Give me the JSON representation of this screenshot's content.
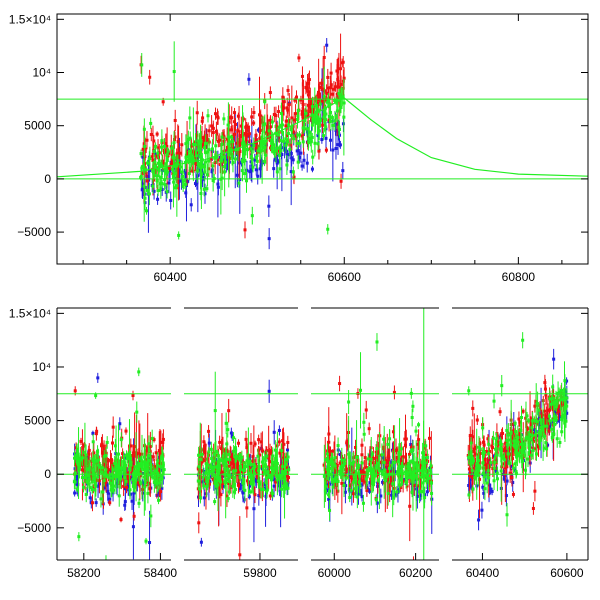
{
  "figure": {
    "background": "#ffffff",
    "series_colors": {
      "blue": "#1f1fdd",
      "red": "#ee1111",
      "green": "#22ee22",
      "model": "#22ee22"
    }
  },
  "chart_data": [
    {
      "type": "scatter",
      "title": "",
      "xlabel": "",
      "ylabel": "",
      "xlim": [
        60270,
        60880
      ],
      "ylim": [
        -8000,
        15500
      ],
      "grid": false,
      "legend": "none",
      "x_ticks": [
        {
          "value": 60400,
          "label": "60400"
        },
        {
          "value": 60600,
          "label": "60600"
        },
        {
          "value": 60800,
          "label": "60800"
        }
      ],
      "y_ticks": [
        {
          "value": 15000,
          "label": "1.5×10⁴"
        },
        {
          "value": 10000,
          "label": "10⁴"
        },
        {
          "value": 5000,
          "label": "5000"
        },
        {
          "value": 0,
          "label": "0"
        },
        {
          "value": -5000,
          "label": "−5000"
        }
      ],
      "horizontal_lines": [
        {
          "y": 7500,
          "color": "#22ee22"
        },
        {
          "y": 0,
          "color": "#22ee22"
        }
      ],
      "model_curve": {
        "color": "#22ee22",
        "x": [
          60270,
          60365,
          60440,
          60500,
          60550,
          60600,
          60630,
          60660,
          60700,
          60750,
          60800,
          60880
        ],
        "y": [
          200,
          700,
          1800,
          3500,
          5400,
          7600,
          5600,
          3800,
          2000,
          900,
          450,
          250
        ]
      },
      "series": [
        {
          "color": "blue",
          "x_range": [
            60365,
            60600
          ],
          "trend": [
            [
              60365,
              -300
            ],
            [
              60450,
              800
            ],
            [
              60520,
              2200
            ],
            [
              60600,
              4400
            ]
          ],
          "scatter": 2600,
          "n": 160
        },
        {
          "color": "red",
          "x_range": [
            60365,
            60600
          ],
          "trend": [
            [
              60365,
              1500
            ],
            [
              60450,
              3300
            ],
            [
              60520,
              5000
            ],
            [
              60600,
              8800
            ]
          ],
          "scatter": 2600,
          "n": 320
        },
        {
          "color": "green",
          "x_range": [
            60365,
            60600
          ],
          "trend": [
            [
              60365,
              800
            ],
            [
              60450,
              1800
            ],
            [
              60520,
              3400
            ],
            [
              60600,
              7000
            ]
          ],
          "scatter": 2600,
          "n": 320
        }
      ]
    },
    {
      "type": "scatter",
      "title": "",
      "xlabel": "",
      "ylabel": "",
      "xlim": [
        58130,
        60650
      ],
      "ylim": [
        -8000,
        15500
      ],
      "grid": false,
      "legend": "none",
      "broken_axis_gaps": [
        [
          58425,
          59630
        ],
        [
          59890,
          59960
        ],
        [
          60255,
          60335
        ]
      ],
      "x_ticks": [
        {
          "value": 58200,
          "label": "58200"
        },
        {
          "value": 58400,
          "label": "58400"
        },
        {
          "value": 59800,
          "label": "59800"
        },
        {
          "value": 60000,
          "label": "60000"
        },
        {
          "value": 60200,
          "label": "60200"
        },
        {
          "value": 60400,
          "label": "60400"
        },
        {
          "value": 60600,
          "label": "60600"
        }
      ],
      "y_ticks": [
        {
          "value": 15000,
          "label": "1.5×10⁴"
        },
        {
          "value": 10000,
          "label": "10⁴"
        },
        {
          "value": 5000,
          "label": "5000"
        },
        {
          "value": 0,
          "label": "0"
        },
        {
          "value": -5000,
          "label": "−5000"
        }
      ],
      "horizontal_lines": [
        {
          "y": 7500,
          "color": "#22ee22"
        },
        {
          "y": 0,
          "color": "#22ee22"
        }
      ],
      "vertical_lines": [
        {
          "x": 60220,
          "color": "#22ee22"
        }
      ],
      "seasons": [
        {
          "x_range": [
            58175,
            58410
          ],
          "trend_start": 200,
          "trend_end": 200
        },
        {
          "x_range": [
            59650,
            59870
          ],
          "trend_start": 200,
          "trend_end": 200
        },
        {
          "x_range": [
            59975,
            60240
          ],
          "trend_start": 200,
          "trend_end": 200
        },
        {
          "x_range": [
            60365,
            60600
          ],
          "trend_start": 800,
          "trend_end": 7000
        }
      ]
    }
  ]
}
